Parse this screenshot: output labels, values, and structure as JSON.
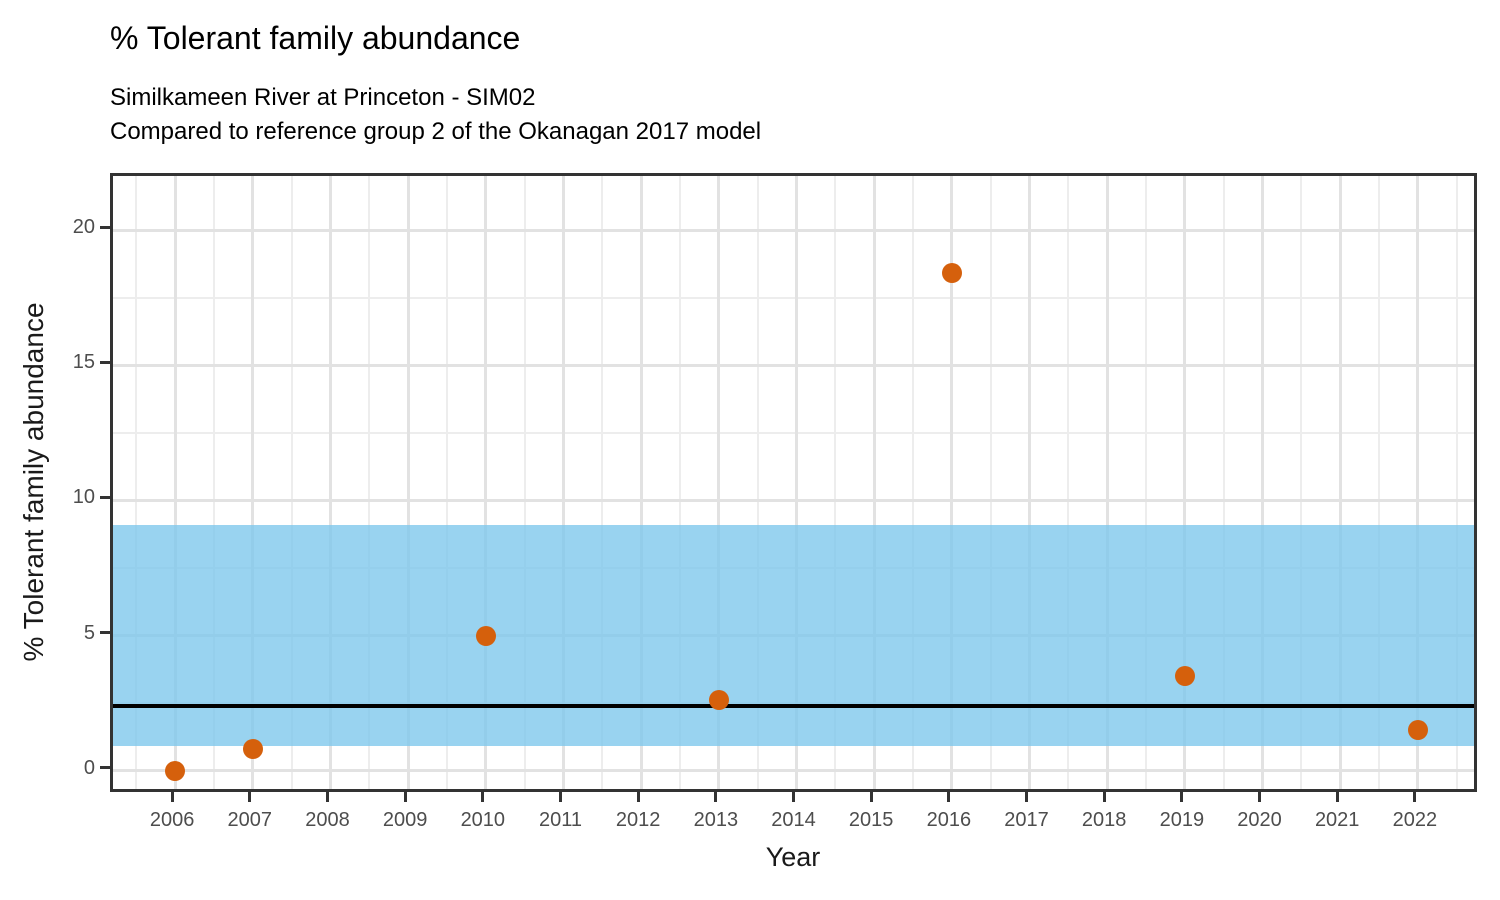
{
  "header": {
    "title": "% Tolerant family abundance",
    "subtitle_line1": "Similkameen River at Princeton - SIM02",
    "subtitle_line2": "Compared to reference group 2 of the Okanagan 2017 model"
  },
  "chart_data": {
    "type": "scatter",
    "title": "% Tolerant family abundance",
    "subtitle_line1": "Similkameen River at Princeton - SIM02",
    "subtitle_line2": "Compared to reference group 2 of the Okanagan 2017 model",
    "xlabel": "Year",
    "ylabel": "% Tolerant family abundance",
    "x_ticks": [
      2006,
      2007,
      2008,
      2009,
      2010,
      2011,
      2012,
      2013,
      2014,
      2015,
      2016,
      2017,
      2018,
      2019,
      2020,
      2021,
      2022
    ],
    "y_ticks": [
      0,
      5,
      10,
      15,
      20
    ],
    "xlim": [
      2005.2,
      2022.8
    ],
    "ylim": [
      -0.9,
      22.0
    ],
    "points": [
      {
        "x": 2006,
        "y": 0.0
      },
      {
        "x": 2007,
        "y": 0.8
      },
      {
        "x": 2010,
        "y": 5.0
      },
      {
        "x": 2013,
        "y": 2.6
      },
      {
        "x": 2016,
        "y": 18.4
      },
      {
        "x": 2019,
        "y": 3.5
      },
      {
        "x": 2022,
        "y": 1.5
      }
    ],
    "point_color": "#d5600c",
    "reference_band": {
      "lower": 0.9,
      "upper": 9.1,
      "color": "rgba(124,199,236,0.78)"
    },
    "reference_line": {
      "value": 2.4,
      "color": "#000000"
    },
    "grid": "on",
    "legend": "none"
  }
}
